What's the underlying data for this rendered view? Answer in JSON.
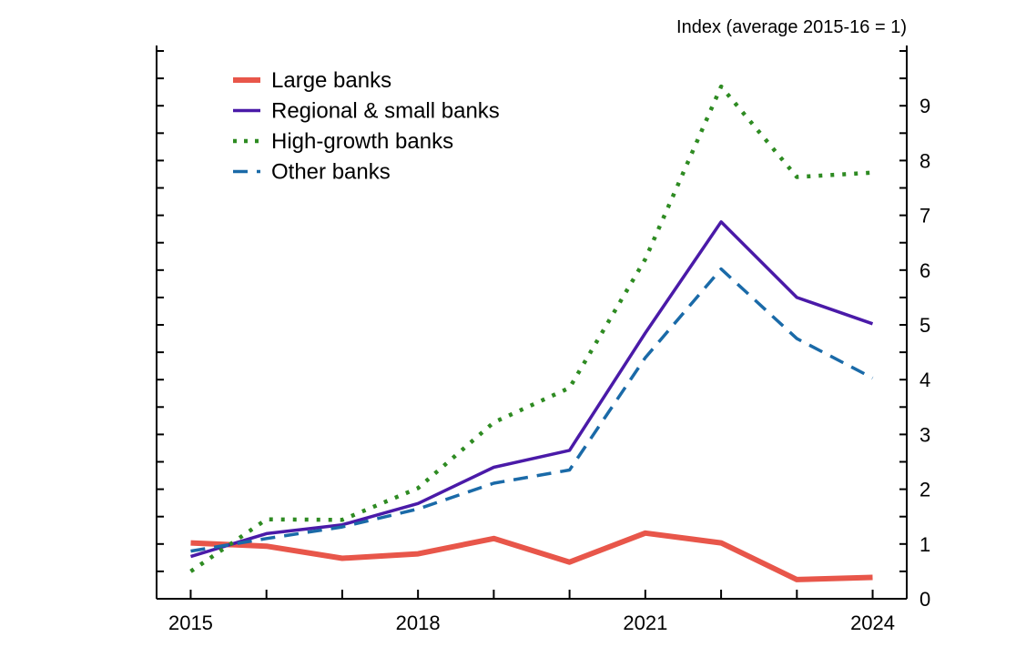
{
  "chart_data": {
    "type": "line",
    "title": "",
    "xlabel": "",
    "ylabel": "Index (average 2015-16 = 1)",
    "x": [
      2015,
      2016,
      2017,
      2018,
      2019,
      2020,
      2021,
      2022,
      2023,
      2024
    ],
    "x_tick_labels": [
      "2015",
      "2018",
      "2021",
      "2024"
    ],
    "y_tick_labels": [
      "0",
      "1",
      "2",
      "3",
      "4",
      "5",
      "6",
      "7",
      "8",
      "9"
    ],
    "xlim": [
      2014.55,
      2024.45
    ],
    "ylim": [
      0,
      10.1
    ],
    "legend_position": "top-left",
    "series": [
      {
        "name": "Large banks",
        "color": "#e8564a",
        "style": "solid-thick",
        "values": [
          1.02,
          0.96,
          0.74,
          0.82,
          1.1,
          0.67,
          1.2,
          1.02,
          0.35,
          0.39
        ]
      },
      {
        "name": "Regional & small banks",
        "color": "#4a1aa8",
        "style": "solid",
        "values": [
          0.77,
          1.19,
          1.35,
          1.74,
          2.4,
          2.71,
          4.85,
          6.88,
          5.5,
          5.02
        ]
      },
      {
        "name": "High-growth banks",
        "color": "#2e8b22",
        "style": "dotted",
        "values": [
          0.5,
          1.45,
          1.44,
          2.02,
          3.22,
          3.85,
          6.2,
          9.35,
          7.7,
          7.78
        ]
      },
      {
        "name": "Other banks",
        "color": "#1a6aa8",
        "style": "dashed",
        "values": [
          0.87,
          1.1,
          1.31,
          1.64,
          2.11,
          2.35,
          4.4,
          6.02,
          4.75,
          4.03
        ]
      }
    ]
  }
}
